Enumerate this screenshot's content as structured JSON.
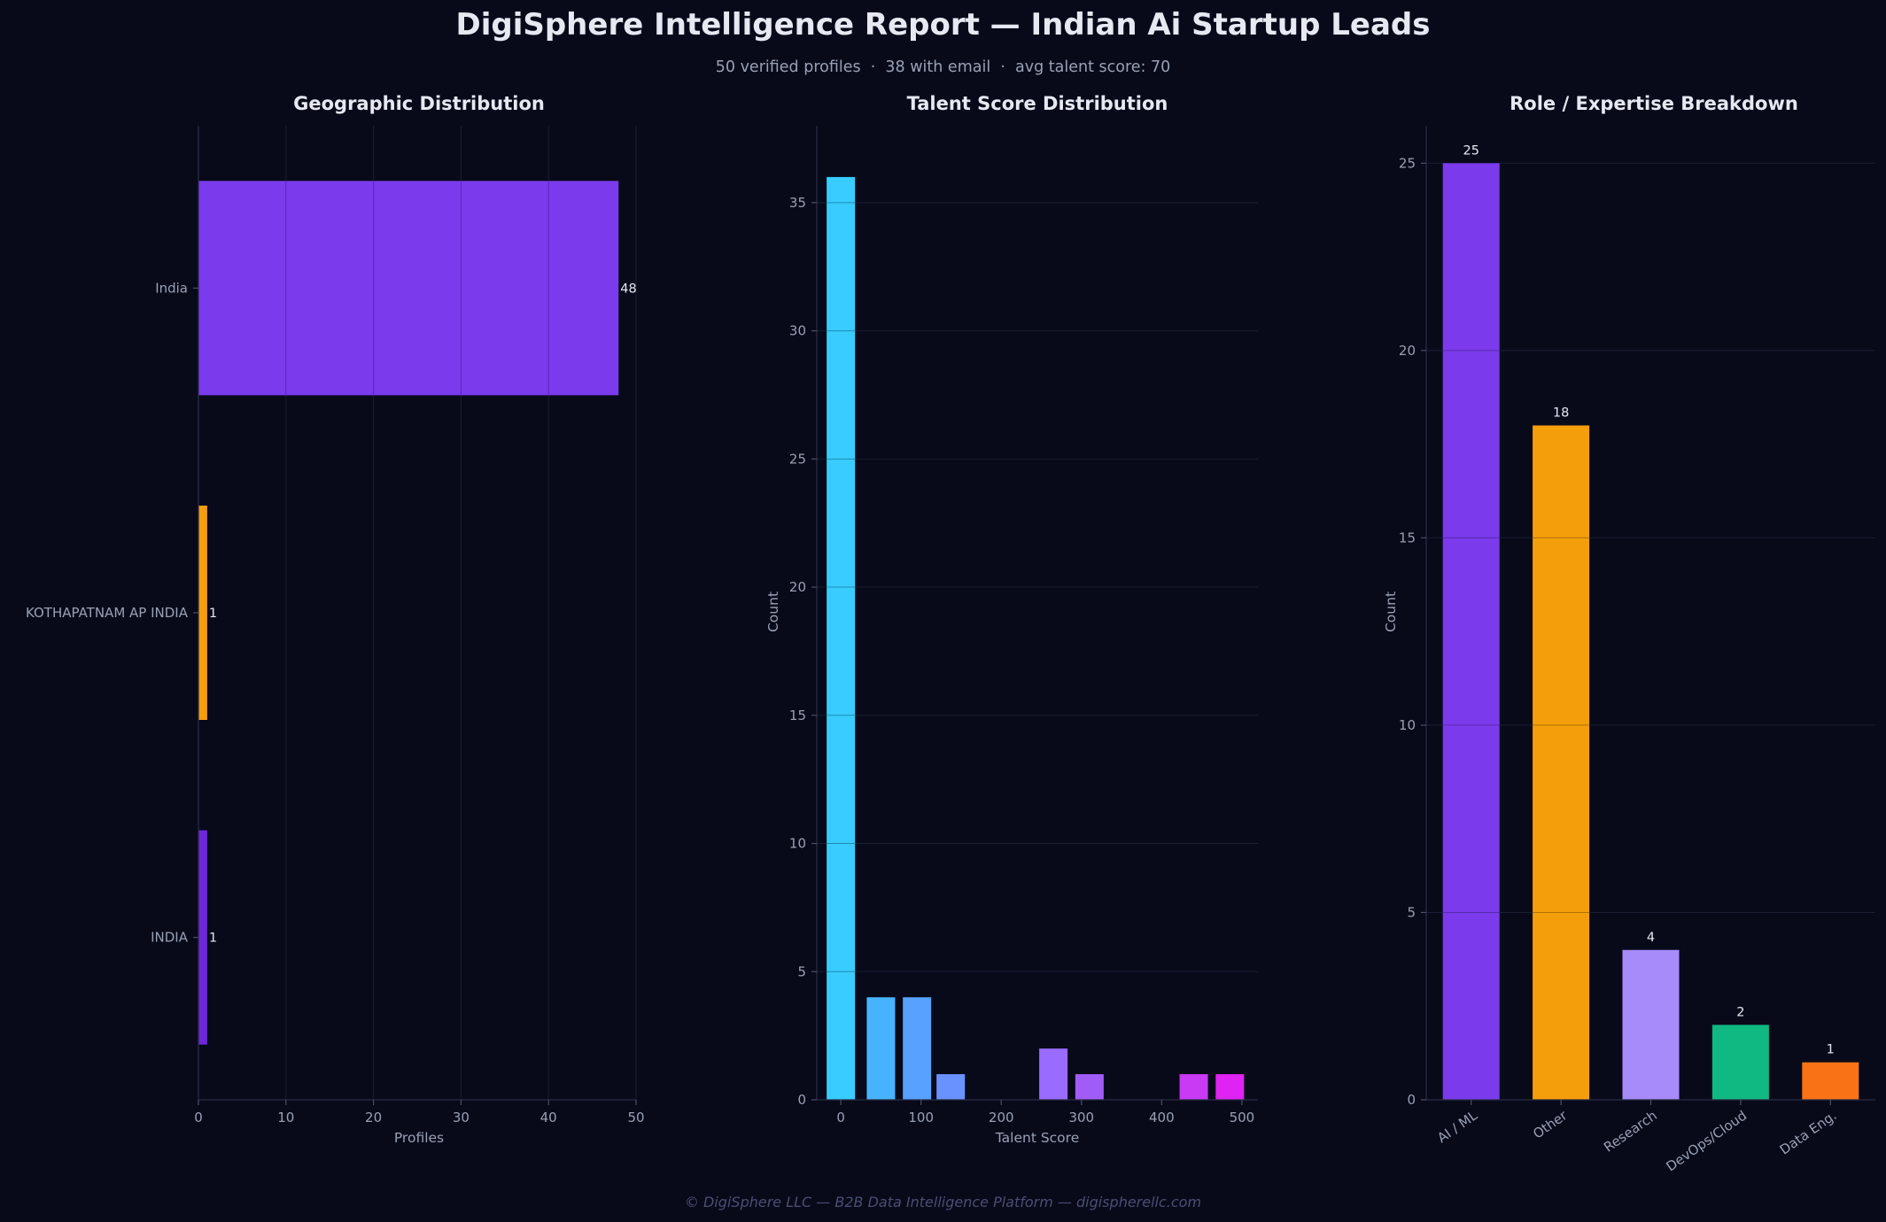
{
  "header": {
    "title": "DigiSphere Intelligence Report — Indian Ai Startup Leads",
    "subtitle": "50 verified profiles  ·  38 with email  ·  avg talent score: 70"
  },
  "footer": {
    "text": "© DigiSphere LLC — B2B Data Intelligence Platform — digispherellc.com"
  },
  "chart_data": [
    {
      "type": "bar",
      "orientation": "horizontal",
      "title": "Geographic Distribution",
      "xlabel": "Profiles",
      "ylabel": "",
      "categories": [
        "India",
        "KOTHAPATNAM AP INDIA",
        "INDIA"
      ],
      "values": [
        48,
        1,
        1
      ],
      "data_labels": [
        "48",
        "1",
        "1"
      ],
      "colors": [
        "#7c3aed",
        "#f59e0b",
        "#6d28d9"
      ],
      "xlim": [
        0,
        50
      ],
      "xticks": [
        0,
        10,
        20,
        30,
        40,
        50
      ],
      "grid": "vertical"
    },
    {
      "type": "bar",
      "subtype": "histogram",
      "title": "Talent Score Distribution",
      "xlabel": "Talent Score",
      "ylabel": "Count",
      "bin_centers": [
        0,
        50,
        95,
        137,
        265,
        310,
        440,
        485
      ],
      "values": [
        36,
        4,
        4,
        1,
        2,
        1,
        1,
        1
      ],
      "colors": [
        "#38ccff",
        "#47b3ff",
        "#58a1ff",
        "#6a92ff",
        "#9a6bff",
        "#a15cf8",
        "#c93af4",
        "#de23f2"
      ],
      "xlim": [
        -30,
        520
      ],
      "ylim": [
        0,
        38
      ],
      "xticks": [
        0,
        100,
        200,
        300,
        400,
        500
      ],
      "yticks": [
        0,
        5,
        10,
        15,
        20,
        25,
        30,
        35
      ],
      "grid": "horizontal"
    },
    {
      "type": "bar",
      "title": "Role / Expertise Breakdown",
      "xlabel": "",
      "ylabel": "Count",
      "categories": [
        "AI / ML",
        "Other",
        "Research",
        "DevOps/Cloud",
        "Data Eng."
      ],
      "values": [
        25,
        18,
        4,
        2,
        1
      ],
      "data_labels": [
        "25",
        "18",
        "4",
        "2",
        "1"
      ],
      "colors": [
        "#7c3aed",
        "#f59e0b",
        "#a78bfa",
        "#10b981",
        "#f97316"
      ],
      "ylim": [
        0,
        26
      ],
      "yticks": [
        0,
        5,
        10,
        15,
        20,
        25
      ],
      "grid": "horizontal"
    }
  ]
}
